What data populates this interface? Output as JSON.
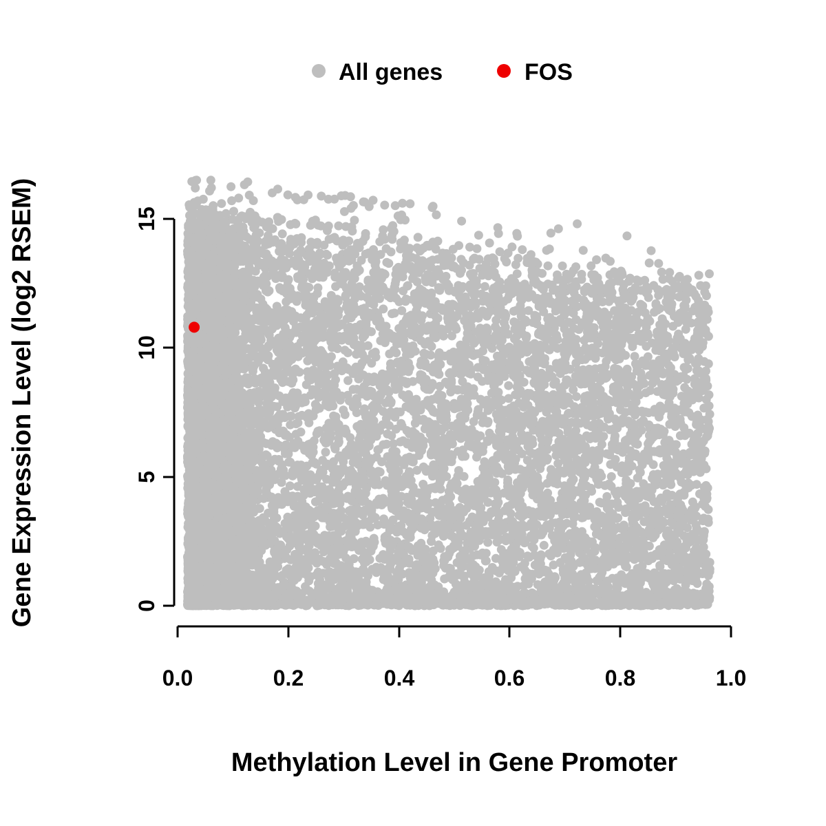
{
  "chart_data": {
    "type": "scatter",
    "title": "",
    "xlabel": "Methylation Level in Gene Promoter",
    "ylabel": "Gene Expression Level (log2 RSEM)",
    "xlim": [
      0.0,
      1.0
    ],
    "ylim": [
      0,
      16.5
    ],
    "grid": false,
    "x_ticks": [
      "0.0",
      "0.2",
      "0.4",
      "0.6",
      "0.8",
      "1.0"
    ],
    "x_tick_values": [
      0.0,
      0.2,
      0.4,
      0.6,
      0.8,
      1.0
    ],
    "y_ticks": [
      "0",
      "5",
      "10",
      "15"
    ],
    "y_tick_values": [
      0,
      5,
      10,
      15
    ],
    "legend": {
      "position": "top-center",
      "entries": [
        {
          "label": "All genes",
          "color": "#BEBEBE"
        },
        {
          "label": "FOS",
          "color": "#EE0000"
        }
      ]
    },
    "series": [
      {
        "name": "All genes",
        "color": "#BEBEBE",
        "point_radius": 6.5,
        "n_points": 12000,
        "distribution": {
          "description": "Dense gray cloud: methylation 0.02-0.96, expression 0 to an upper envelope that declines from ~15 at low methylation to ~12.5 at high methylation; very dense vertical stripe at methylation < 0.1 spanning 0-16.5; dense band along expression = 0; sparse outliers up to 16.5.",
          "seed": 12345,
          "x_min": 0.018,
          "x_max": 0.962,
          "x_skew": 1.1,
          "left_stripe_frac": 0.36,
          "left_stripe_scale": 0.05,
          "envelope_intercept": 15.1,
          "envelope_slope": -2.7,
          "envelope_noise": 0.45,
          "bottom_band_frac": 0.13,
          "bottom_band_scale": 0.25,
          "y_skew": 1.12,
          "n_outliers": 80,
          "outlier_max_y": 16.5
        }
      },
      {
        "name": "FOS",
        "color": "#EE0000",
        "point_radius": 8,
        "points": [
          [
            0.03,
            10.8
          ]
        ]
      }
    ]
  },
  "colors": {
    "background": "#FFFFFF",
    "axis": "#000000",
    "text": "#000000"
  }
}
